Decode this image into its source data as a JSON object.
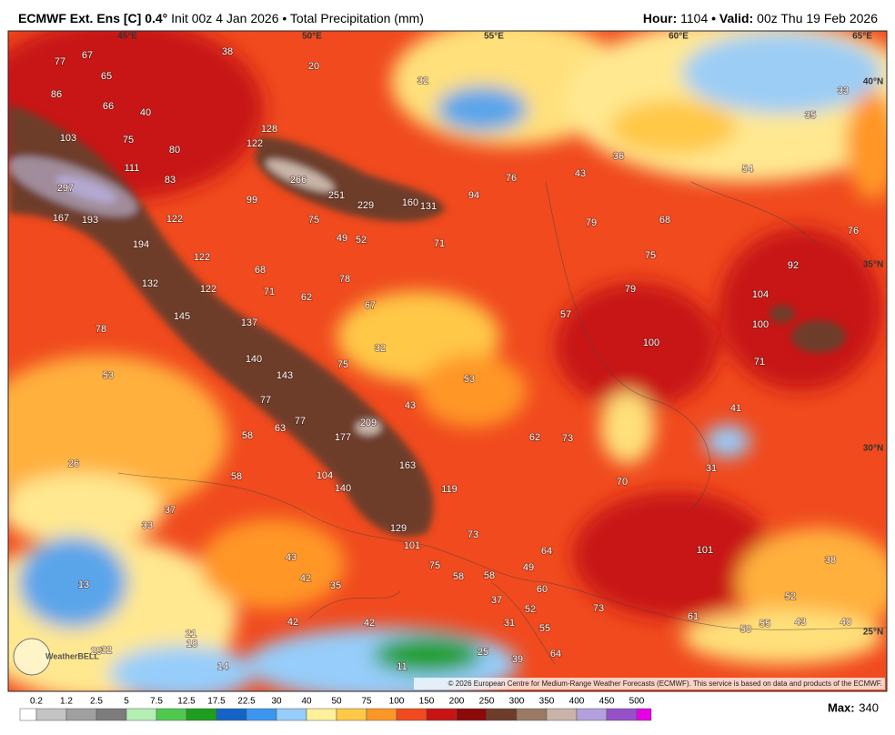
{
  "header": {
    "title_bold": "ECMWF Ext. Ens [C] 0.4°",
    "title_rest": "Init 00z 4 Jan 2026 • Total Precipitation (mm)",
    "hour_label": "Hour:",
    "hour": "1104",
    "valid_label": "• Valid:",
    "valid": "00z Thu 19 Feb 2026"
  },
  "map": {
    "longitude_labels": [
      "45°E",
      "50°E",
      "55°E",
      "60°E",
      "65°E"
    ],
    "latitude_labels": [
      "40°N",
      "35°N",
      "30°N",
      "25°N"
    ],
    "logo": "WeatherBELL",
    "values": [
      77,
      67,
      38,
      20,
      65,
      86,
      66,
      40,
      32,
      33,
      103,
      75,
      128,
      122,
      35,
      80,
      111,
      83,
      36,
      43,
      76,
      54,
      266,
      251,
      229,
      160,
      131,
      94,
      297,
      99,
      167,
      193,
      122,
      75,
      79,
      68,
      76,
      49,
      52,
      71,
      194,
      75,
      92,
      122,
      68,
      78,
      132,
      122,
      71,
      62,
      67,
      79,
      104,
      57,
      145,
      137,
      100,
      78,
      100,
      32,
      140,
      143,
      75,
      71,
      53,
      53,
      77,
      43,
      41,
      63,
      77,
      209,
      62,
      73,
      58,
      177,
      26,
      163,
      31,
      58,
      104,
      70,
      140,
      119,
      37,
      33,
      129,
      73,
      101,
      101,
      64,
      38,
      43,
      75,
      58,
      58,
      49,
      13,
      42,
      35,
      60,
      37,
      52,
      73,
      52,
      61,
      42,
      42,
      31,
      55,
      50,
      55,
      43,
      40,
      21,
      18,
      29,
      32,
      25,
      39,
      64,
      14,
      11
    ]
  },
  "credit": "© 2026 European Centre for Medium-Range Weather Forecasts (ECMWF). This service is based on data and products of the ECMWF.",
  "colorbar": {
    "levels": [
      0.2,
      1.2,
      2.5,
      5,
      7.5,
      12.5,
      17.5,
      22.5,
      30,
      40,
      50,
      75,
      100,
      150,
      200,
      250,
      300,
      350,
      400,
      450,
      500
    ],
    "colors": [
      "#ffffff",
      "#c4c4c4",
      "#a0a0a0",
      "#7c7c7c",
      "#b4f0b4",
      "#50c850",
      "#1e9e1e",
      "#1464c8",
      "#3c96f0",
      "#96cdfa",
      "#fff09a",
      "#ffc846",
      "#ff9628",
      "#f04a1e",
      "#c81414",
      "#8c0a0a",
      "#6e3c2a",
      "#9a7a66",
      "#c8b4a8",
      "#b4a0dc",
      "#9650c8",
      "#e600e6"
    ]
  },
  "max": {
    "label": "Max:",
    "value": 340
  }
}
